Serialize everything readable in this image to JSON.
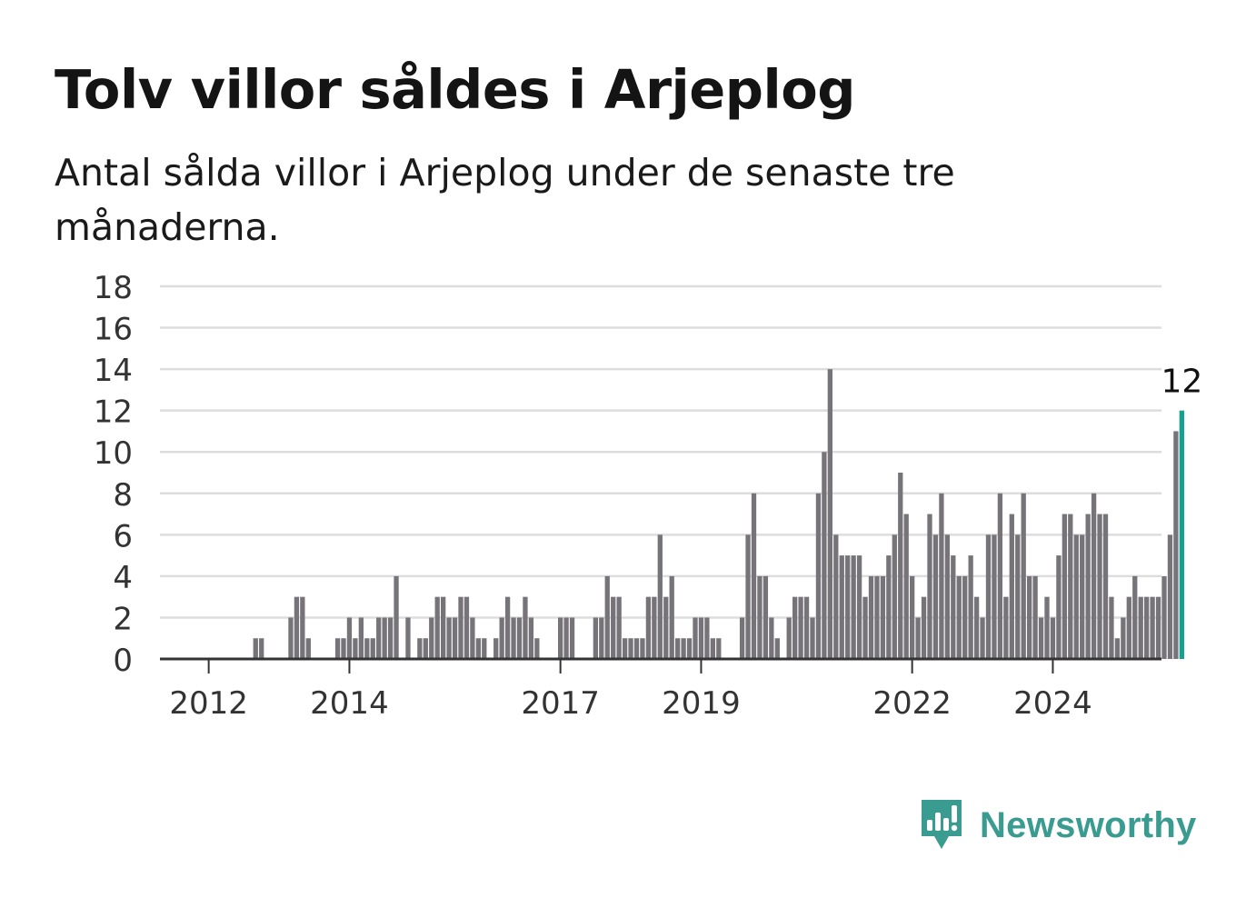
{
  "title": "Tolv villor såldes i Arjeplog",
  "subtitle": "Antal sålda villor i Arjeplog under de senaste tre månaderna.",
  "brand": {
    "name": "Newsworthy",
    "icon": "newsworthy-logo-icon",
    "color": "#3a9b91"
  },
  "chart_data": {
    "type": "bar",
    "title": "",
    "xlabel": "",
    "ylabel": "",
    "ylim": [
      0,
      18
    ],
    "yticks": [
      "0",
      "2",
      "4",
      "6",
      "8",
      "10",
      "12",
      "14",
      "16",
      "18"
    ],
    "xticks": [
      {
        "label": "2012",
        "year": 2012
      },
      {
        "label": "2014",
        "year": 2014
      },
      {
        "label": "2017",
        "year": 2017
      },
      {
        "label": "2019",
        "year": 2019
      },
      {
        "label": "2022",
        "year": 2022
      },
      {
        "label": "2024",
        "year": 2024
      }
    ],
    "grid": true,
    "bar_color": "#767478",
    "highlight_color": "#17a090",
    "highlight_label": "12",
    "series": [
      {
        "values": [
          0,
          0,
          0,
          0,
          0,
          0,
          0,
          0,
          1,
          1,
          0,
          0,
          0,
          0,
          2,
          3,
          3,
          1,
          0,
          0,
          0,
          0,
          1,
          1,
          2,
          1,
          2,
          1,
          1,
          2,
          2,
          2,
          4,
          0,
          2,
          0,
          1,
          1,
          2,
          3,
          3,
          2,
          2,
          3,
          3,
          2,
          1,
          1,
          0,
          1,
          2,
          3,
          2,
          2,
          3,
          2,
          1,
          0,
          0,
          0,
          2,
          2,
          2,
          0,
          0,
          0,
          2,
          2,
          4,
          3,
          3,
          1,
          1,
          1,
          1,
          3,
          3,
          6,
          3,
          4,
          1,
          1,
          1,
          2,
          2,
          2,
          1,
          1,
          0,
          0,
          0,
          2,
          6,
          8,
          4,
          4,
          2,
          1,
          0,
          2,
          3,
          3,
          3,
          2,
          8,
          10,
          14,
          6,
          5,
          5,
          5,
          5,
          3,
          4,
          4,
          4,
          5,
          6,
          9,
          7,
          4,
          2,
          3,
          7,
          6,
          8,
          6,
          5,
          4,
          4,
          5,
          3,
          2,
          6,
          6,
          8,
          3,
          7,
          6,
          8,
          4,
          4,
          2,
          3,
          2,
          5,
          7,
          7,
          6,
          6,
          7,
          8,
          7,
          7,
          3,
          1,
          2,
          3,
          4,
          3,
          3,
          3,
          3,
          4,
          6,
          11,
          12
        ]
      }
    ]
  }
}
